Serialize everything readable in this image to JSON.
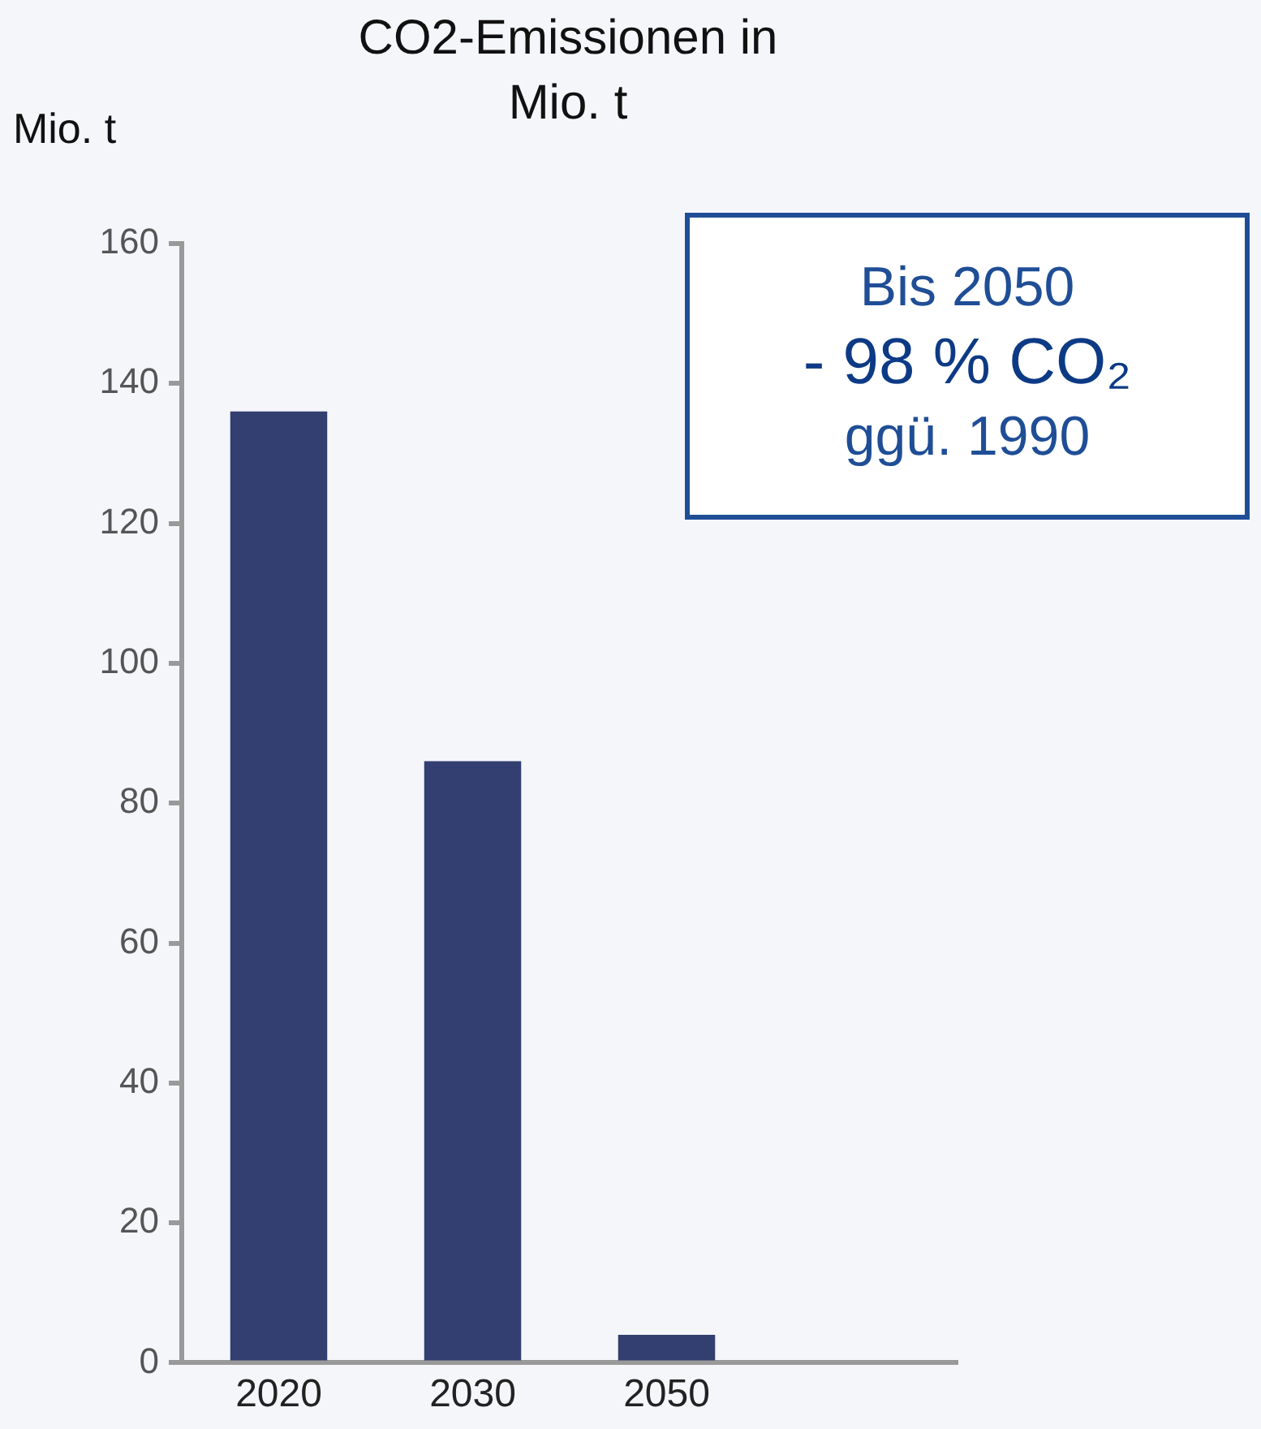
{
  "chart_data": {
    "type": "bar",
    "title": "CO2-Emissionen in Mio. t",
    "ylabel": "Mio. t",
    "categories": [
      "2020",
      "2030",
      "2050",
      null
    ],
    "values": [
      136,
      86,
      4,
      null
    ],
    "color": "#333f70",
    "ylim": [
      0,
      160
    ],
    "yticks": [
      0,
      20,
      40,
      60,
      80,
      100,
      120,
      140,
      160
    ],
    "grid": false,
    "legend": false,
    "annotations": [
      "Bis 2050",
      "- 98 % CO₂",
      "ggü. 1990"
    ]
  }
}
